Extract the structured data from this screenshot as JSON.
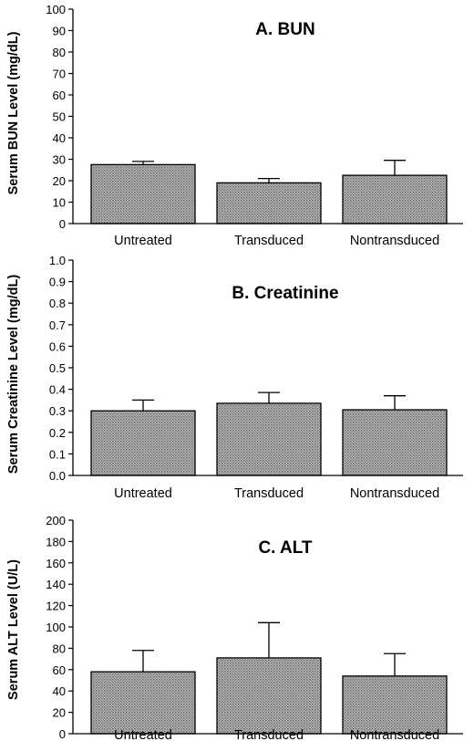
{
  "chart_data": [
    {
      "type": "bar",
      "title": "A. BUN",
      "ylabel": "Serum BUN Level (mg/dL)",
      "categories": [
        "Untreated",
        "Transduced",
        "Nontransduced"
      ],
      "values": [
        27.5,
        19,
        22.5
      ],
      "error_bars": [
        1.5,
        2,
        7
      ],
      "ylim": [
        0,
        100
      ],
      "yticks": [
        "0",
        "10",
        "20",
        "30",
        "40",
        "50",
        "60",
        "70",
        "80",
        "90",
        "100"
      ],
      "grid": false
    },
    {
      "type": "bar",
      "title": "B. Creatinine",
      "ylabel": "Serum Creatinine Level (mg/dL)",
      "categories": [
        "Untreated",
        "Transduced",
        "Nontransduced"
      ],
      "values": [
        0.3,
        0.335,
        0.305
      ],
      "error_bars": [
        0.05,
        0.05,
        0.065
      ],
      "ylim": [
        0,
        1.0
      ],
      "yticks": [
        "0.0",
        "0.1",
        "0.2",
        "0.3",
        "0.4",
        "0.5",
        "0.6",
        "0.7",
        "0.8",
        "0.9",
        "1.0"
      ],
      "grid": false
    },
    {
      "type": "bar",
      "title": "C. ALT",
      "ylabel": "Serum ALT Level (U/L)",
      "categories": [
        "Untreated",
        "Transduced",
        "Nontransduced"
      ],
      "values": [
        58,
        71,
        54
      ],
      "error_bars": [
        20,
        33,
        21
      ],
      "ylim": [
        0,
        200
      ],
      "yticks": [
        "0",
        "20",
        "40",
        "60",
        "80",
        "100",
        "120",
        "140",
        "160",
        "180",
        "200"
      ],
      "grid": false
    }
  ]
}
